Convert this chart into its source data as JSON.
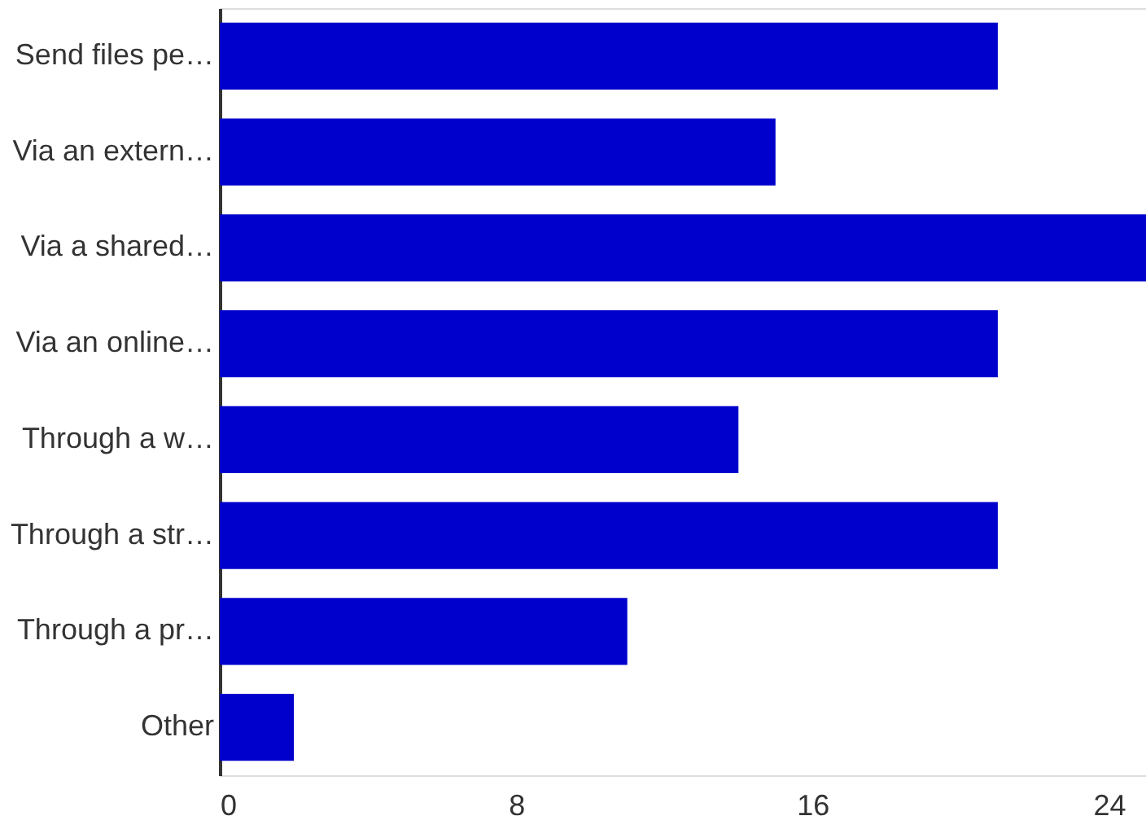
{
  "chart_data": {
    "type": "bar",
    "orientation": "horizontal",
    "categories": [
      "Send files pe…",
      "Via an extern…",
      "Via a shared…",
      "Via an online…",
      "Through a w…",
      "Through a str…",
      "Through a pr…",
      "Other"
    ],
    "values": [
      21,
      15,
      25,
      21,
      14,
      21,
      11,
      2
    ],
    "color": "#0000cc",
    "xlim": [
      0,
      25
    ],
    "xticks": [
      0,
      8,
      16,
      24
    ],
    "grid": false
  }
}
